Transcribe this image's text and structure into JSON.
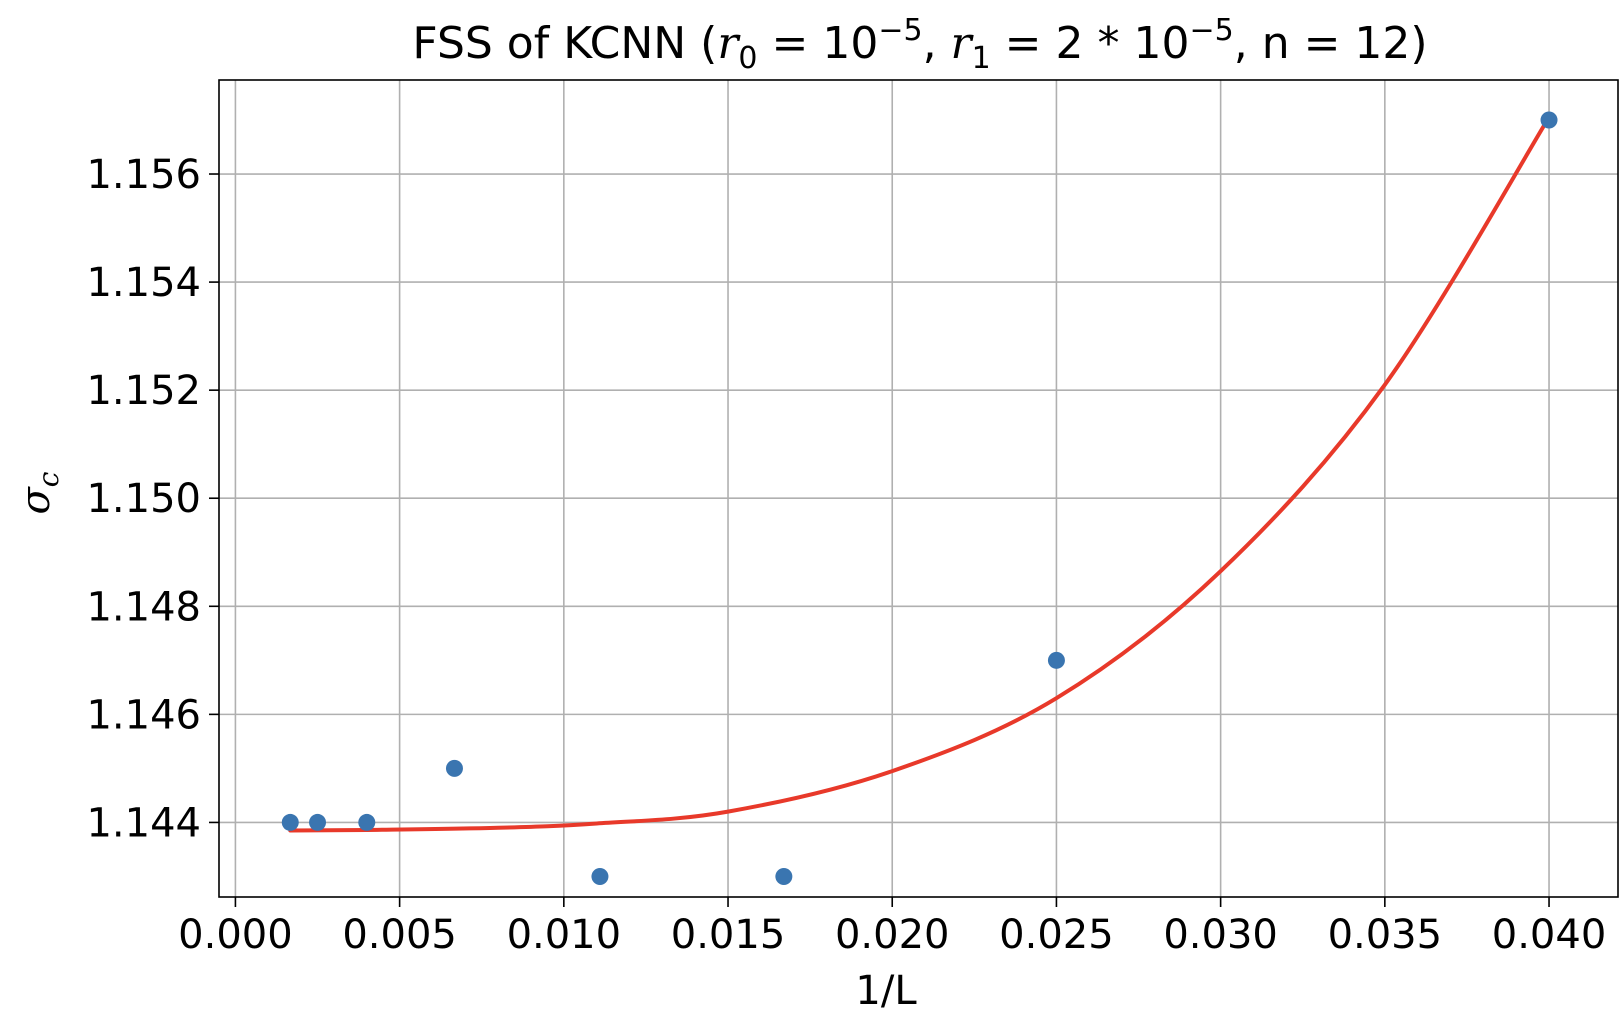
{
  "chart_data": {
    "type": "scatter",
    "title": {
      "prefix": "FSS of KCNN (",
      "r0_symbol": "r",
      "r0_sub": "0",
      "r0_eq": " = 10",
      "r0_exp": "−5",
      "sep": ", ",
      "r1_symbol": "r",
      "r1_sub": "1",
      "r1_eq": " = 2 * 10",
      "r1_exp": "−5",
      "suffix": ", n = 12)"
    },
    "xlabel": "1/L",
    "ylabel": {
      "symbol": "σ",
      "sub": "c"
    },
    "xlim": [
      -0.0005,
      0.0421
    ],
    "ylim": [
      1.14262,
      1.15774
    ],
    "xticks": [
      "0.000",
      "0.005",
      "0.010",
      "0.015",
      "0.020",
      "0.025",
      "0.030",
      "0.035",
      "0.040"
    ],
    "xtick_values": [
      0.0,
      0.005,
      0.01,
      0.015,
      0.02,
      0.025,
      0.03,
      0.035,
      0.04
    ],
    "yticks": [
      "1.144",
      "1.146",
      "1.148",
      "1.150",
      "1.152",
      "1.154",
      "1.156"
    ],
    "ytick_values": [
      1.144,
      1.146,
      1.148,
      1.15,
      1.152,
      1.154,
      1.156
    ],
    "grid": true,
    "series": [
      {
        "kind": "scatter",
        "color": "#3a75b0",
        "x": [
          0.00167,
          0.0025,
          0.004,
          0.00667,
          0.0111,
          0.0167,
          0.025,
          0.04
        ],
        "y": [
          1.144,
          1.144,
          1.144,
          1.145,
          1.143,
          1.143,
          1.147,
          1.157
        ]
      },
      {
        "kind": "line",
        "color": "#e8392a",
        "x": [
          0.00167,
          0.004,
          0.008,
          0.011,
          0.015,
          0.02,
          0.025,
          0.03,
          0.035,
          0.04
        ],
        "y": [
          1.14385,
          1.14386,
          1.1439,
          1.14398,
          1.1442,
          1.14495,
          1.1463,
          1.14865,
          1.1521,
          1.15705
        ]
      }
    ]
  }
}
